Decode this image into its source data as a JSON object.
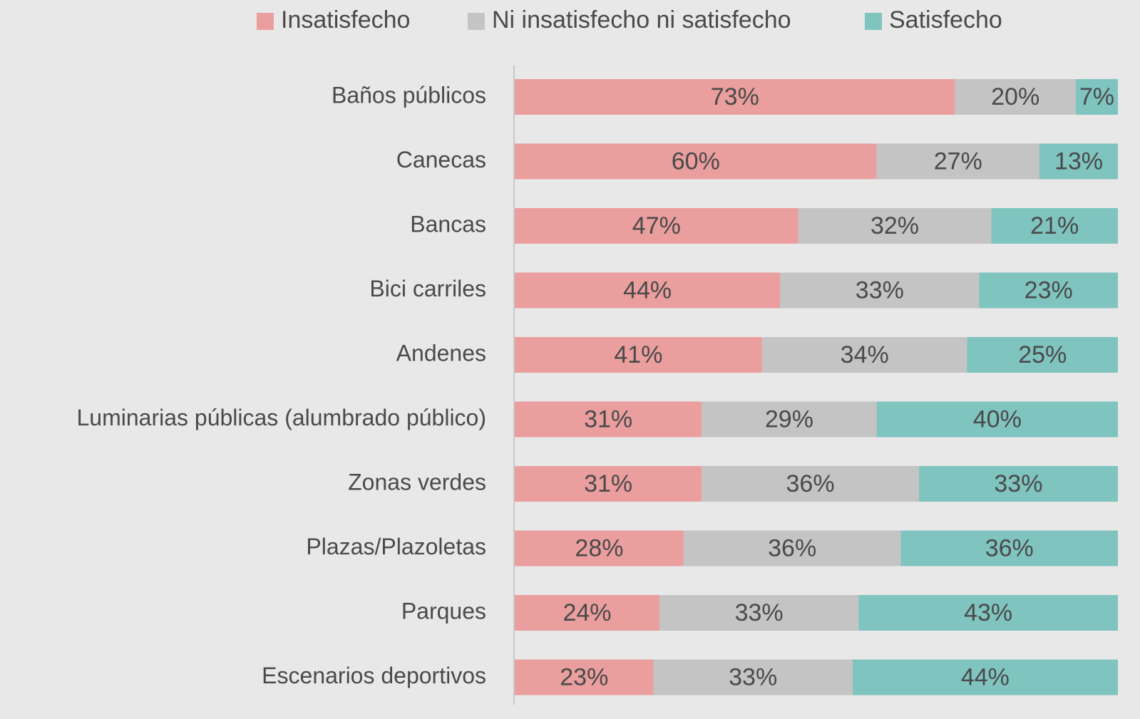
{
  "chart_data": {
    "type": "stacked-bar-horizontal",
    "categories": [
      "Baños públicos",
      "Canecas",
      "Bancas",
      "Bici carriles",
      "Andenes",
      "Luminarias públicas (alumbrado público)",
      "Zonas verdes",
      "Plazas/Plazoletas",
      "Parques",
      "Escenarios deportivos"
    ],
    "series": [
      {
        "name": "Insatisfecho",
        "color": "#eb9e9e",
        "values": [
          73,
          60,
          47,
          44,
          41,
          31,
          31,
          28,
          24,
          23
        ],
        "value_labels": [
          "73%",
          "60%",
          "47%",
          "44%",
          "41%",
          "31%",
          "31%",
          "28%",
          "24%",
          "23%"
        ]
      },
      {
        "name": "Ni insatisfecho ni satisfecho",
        "color": "#c4c4c4",
        "values": [
          20,
          27,
          32,
          33,
          34,
          29,
          36,
          36,
          33,
          33
        ],
        "value_labels": [
          "20%",
          "27%",
          "32%",
          "33%",
          "34%",
          "29%",
          "36%",
          "36%",
          "33%",
          "33%"
        ]
      },
      {
        "name": "Satisfecho",
        "color": "#7fc4bf",
        "values": [
          7,
          13,
          21,
          23,
          25,
          40,
          33,
          36,
          43,
          44
        ],
        "value_labels": [
          "7%",
          "13%",
          "21%",
          "23%",
          "25%",
          "40%",
          "33%",
          "36%",
          "43%",
          "44%"
        ]
      }
    ],
    "xlim": [
      0,
      100
    ],
    "legend": "top"
  }
}
